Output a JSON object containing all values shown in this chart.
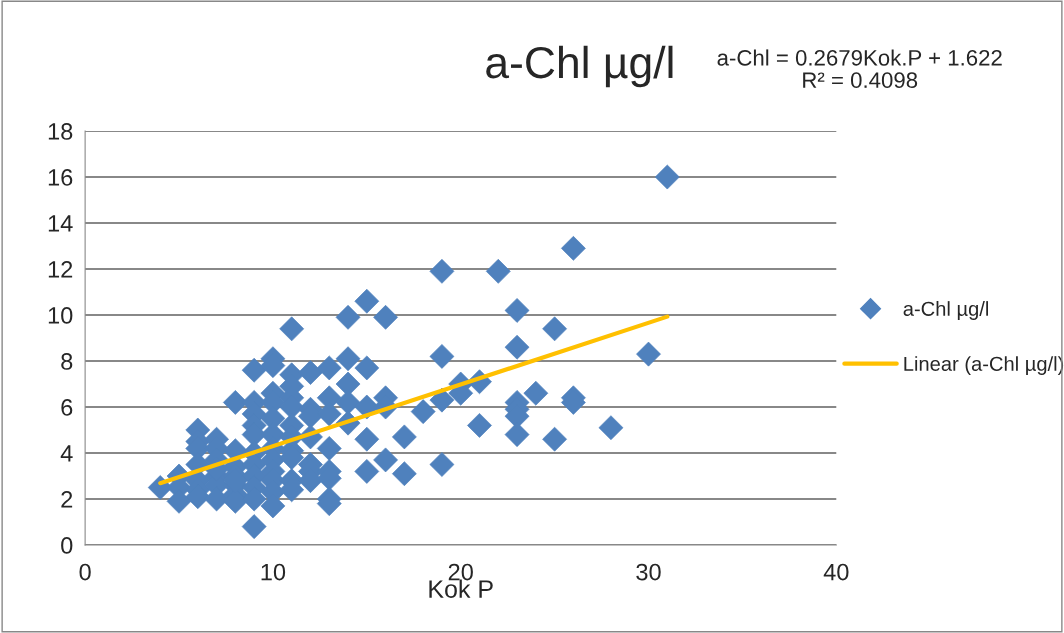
{
  "chart_data": {
    "type": "scatter",
    "title": "a-Chl µg/l",
    "xlabel": "Kok P",
    "annotations": [
      "a-Chl = 0.2679Kok.P + 1.622\nR² = 0.4098"
    ],
    "series": [
      {
        "name": "a-Chl µg/l",
        "type": "scatter",
        "color": "#4f81bd",
        "marker": "diamond",
        "x": [
          4,
          5,
          5,
          5,
          6,
          6,
          6,
          6,
          6,
          6,
          6,
          7,
          7,
          7,
          7,
          7,
          7,
          7,
          8,
          8,
          8,
          8,
          8,
          8,
          8,
          8,
          9,
          9,
          9,
          9,
          9,
          9,
          9,
          9,
          9,
          9,
          9,
          10,
          10,
          10,
          10,
          10,
          10,
          10,
          10,
          10,
          10,
          10,
          10,
          11,
          11,
          11,
          11,
          11,
          11,
          11,
          11,
          11,
          11,
          11,
          12,
          12,
          12,
          12,
          12,
          12,
          12,
          13,
          13,
          13,
          13,
          13,
          13,
          13,
          13,
          14,
          14,
          14,
          14,
          14,
          15,
          15,
          15,
          15,
          15,
          16,
          16,
          16,
          16,
          17,
          17,
          18,
          19,
          19,
          19,
          19,
          20,
          20,
          21,
          21,
          22,
          23,
          23,
          23,
          23,
          23,
          23,
          24,
          25,
          25,
          26,
          26,
          26,
          28,
          30,
          31
        ],
        "values": [
          2.5,
          3.0,
          2.5,
          1.9,
          5.0,
          4.5,
          4.2,
          3.5,
          2.8,
          2.4,
          2.1,
          4.6,
          4.2,
          3.7,
          3.0,
          2.6,
          2.0,
          3.3,
          6.2,
          4.1,
          3.4,
          3.0,
          2.6,
          2.2,
          1.9,
          2.8,
          7.6,
          6.2,
          5.7,
          5.2,
          4.8,
          4.0,
          3.5,
          3.0,
          2.5,
          2.0,
          0.8,
          8.1,
          7.8,
          6.6,
          6.2,
          5.5,
          4.8,
          4.2,
          3.7,
          3.2,
          2.8,
          2.3,
          1.7,
          9.4,
          7.4,
          6.9,
          6.4,
          6.0,
          5.2,
          4.7,
          4.1,
          3.8,
          2.8,
          2.4,
          7.5,
          5.9,
          5.6,
          4.7,
          3.5,
          3.2,
          2.8,
          7.7,
          6.4,
          5.7,
          4.2,
          3.2,
          2.9,
          2.0,
          1.8,
          9.9,
          8.1,
          7.0,
          6.2,
          5.3,
          10.6,
          7.7,
          6.0,
          4.6,
          3.2,
          9.9,
          6.4,
          6.0,
          3.7,
          4.7,
          3.1,
          5.8,
          11.9,
          8.2,
          6.3,
          3.5,
          7.0,
          6.6,
          7.1,
          5.2,
          11.9,
          10.2,
          8.6,
          6.2,
          5.9,
          5.6,
          4.8,
          6.6,
          9.4,
          4.6,
          12.9,
          6.4,
          6.2,
          5.1,
          8.3,
          16.0
        ]
      },
      {
        "name": "Linear (a-Chl µg/l)",
        "type": "line",
        "color": "#ffc000",
        "marker": "none",
        "line_style": "solid",
        "x": [
          4,
          31
        ],
        "values": [
          2.69,
          9.93
        ]
      }
    ],
    "xlim": [
      0,
      40
    ],
    "xticks": [
      0,
      10,
      20,
      30,
      40
    ],
    "ylim": [
      0,
      18
    ],
    "yticks": [
      0,
      2,
      4,
      6,
      8,
      10,
      12,
      14,
      16,
      18
    ],
    "grid": "y",
    "legend": "right"
  }
}
